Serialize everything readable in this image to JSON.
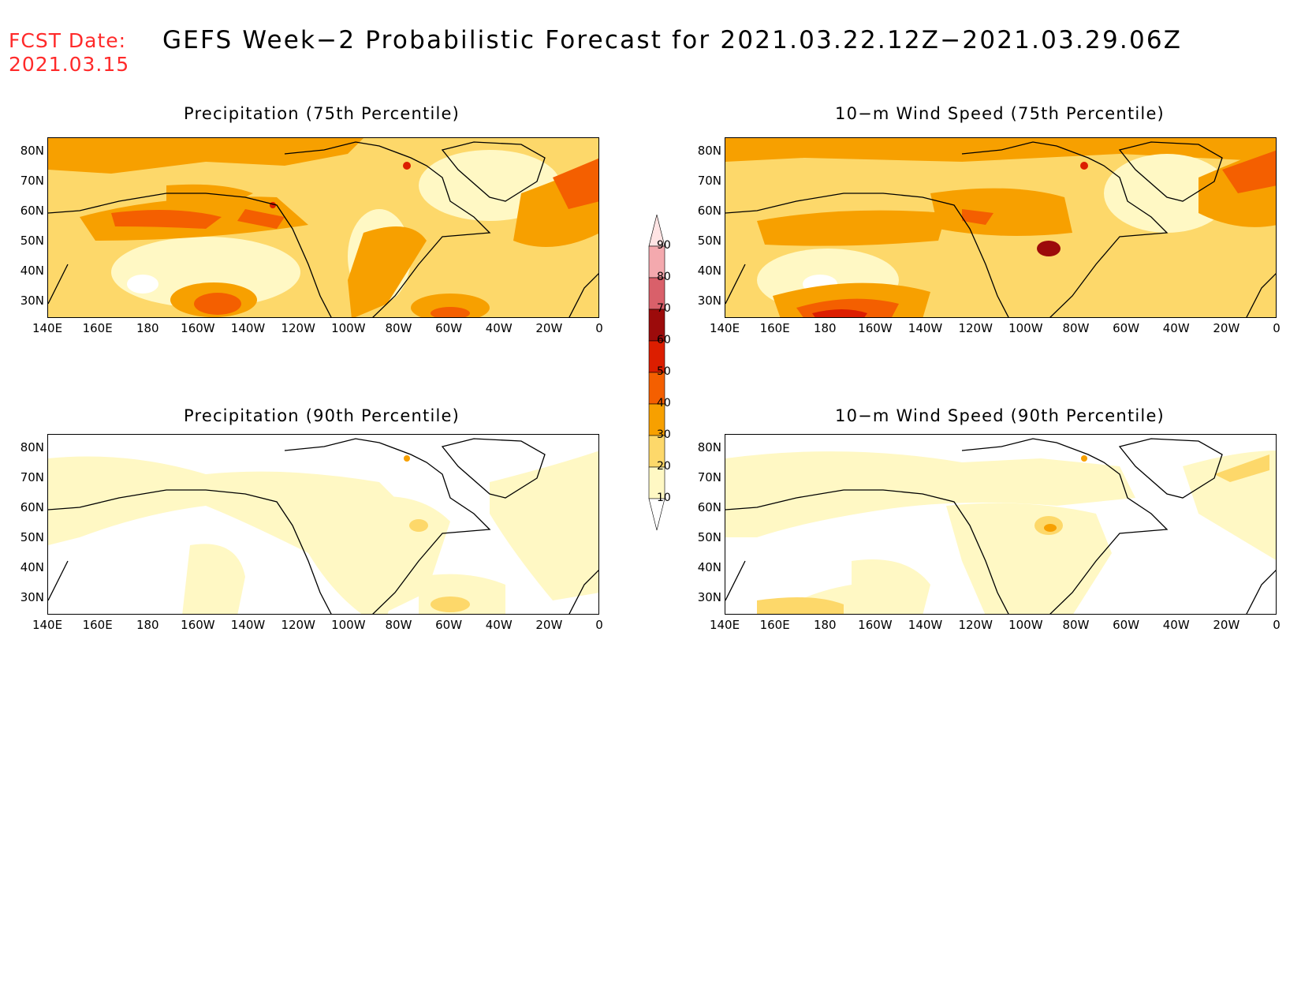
{
  "header": {
    "fcst_label": "FCST Date:",
    "fcst_date": "2021.03.15",
    "title": "GEFS Week−2 Probabilistic Forecast for 2021.03.22.12Z−2021.03.29.06Z"
  },
  "panels": [
    {
      "title": "Precipitation (75th Percentile)",
      "intensity": "high-precip"
    },
    {
      "title": "10−m Wind Speed (75th Percentile)",
      "intensity": "high-wind"
    },
    {
      "title": "Precipitation (90th Percentile)",
      "intensity": "low-precip"
    },
    {
      "title": "10−m Wind Speed (90th Percentile)",
      "intensity": "low-wind"
    }
  ],
  "lat_labels": [
    "80N",
    "70N",
    "60N",
    "50N",
    "40N",
    "30N"
  ],
  "lon_labels": [
    "140E",
    "160E",
    "180",
    "160W",
    "140W",
    "120W",
    "100W",
    "80W",
    "60W",
    "40W",
    "20W",
    "0"
  ],
  "colorbar": {
    "levels": [
      "90",
      "80",
      "70",
      "60",
      "50",
      "40",
      "30",
      "20",
      "10"
    ],
    "colors": [
      "#ffe4e4",
      "#f4a9ae",
      "#d9606a",
      "#9c0b0b",
      "#dc1e00",
      "#f45f00",
      "#f7a000",
      "#fdd86a",
      "#fff8c4"
    ]
  }
}
